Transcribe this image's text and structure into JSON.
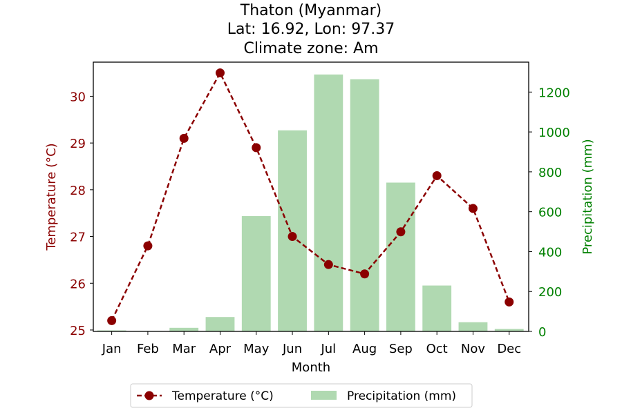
{
  "title_lines": [
    "Thaton (Myanmar)",
    "Lat: 16.92, Lon: 97.37",
    "Climate zone: Am"
  ],
  "chart_data": {
    "type": "bar+line",
    "categories": [
      "Jan",
      "Feb",
      "Mar",
      "Apr",
      "May",
      "Jun",
      "Jul",
      "Aug",
      "Sep",
      "Oct",
      "Nov",
      "Dec"
    ],
    "xlabel": "Month",
    "y_left": {
      "label": "Temperature (°C)",
      "color": "#8b0000",
      "ylim": [
        24.97,
        30.73
      ],
      "ticks": [
        25,
        26,
        27,
        28,
        29,
        30
      ]
    },
    "y_right": {
      "label": "Precipitation (mm)",
      "color": "#008000",
      "ylim": [
        0,
        1350
      ],
      "ticks": [
        0,
        200,
        400,
        600,
        800,
        1000,
        1200
      ]
    },
    "series": [
      {
        "name": "Temperature (°C)",
        "kind": "line",
        "axis": "left",
        "color": "#8b0000",
        "values": [
          25.2,
          26.8,
          29.1,
          30.5,
          28.9,
          27.0,
          26.4,
          26.2,
          27.1,
          28.3,
          27.6,
          25.6
        ]
      },
      {
        "name": "Precipitation (mm)",
        "kind": "bar",
        "axis": "right",
        "color": "#b0d9b1",
        "values": [
          5,
          2,
          18,
          72,
          578,
          1008,
          1288,
          1264,
          746,
          230,
          46,
          12
        ]
      }
    ],
    "legend": [
      "Temperature (°C)",
      "Precipitation (mm)"
    ],
    "legend_position": "bottom-center",
    "grid": false
  }
}
